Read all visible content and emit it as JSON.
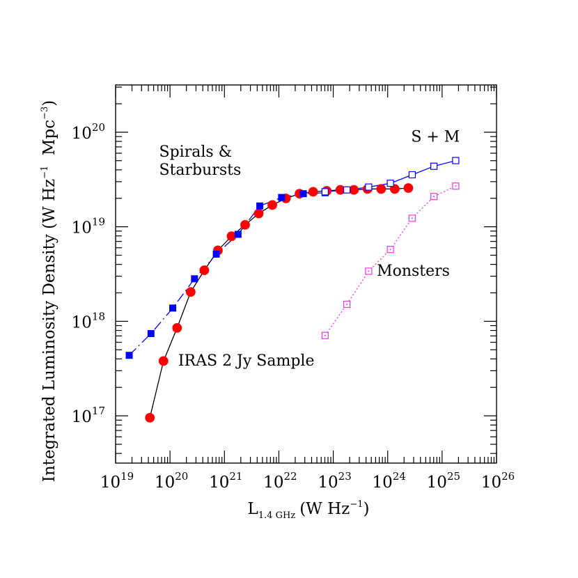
{
  "chart_data": {
    "type": "line",
    "xlabel": "L",
    "xlabel_sub": "1.4 GHz",
    "xlabel_unit_pre": "(W Hz",
    "xlabel_unit_exp": "−1",
    "xlabel_unit_post": ")",
    "ylabel_main": "Integrated Luminosity Density (W Hz",
    "ylabel_exp1": "−1",
    "ylabel_mid": "  Mpc",
    "ylabel_exp2": "−3",
    "ylabel_end": ")",
    "x_log_range": [
      19,
      26
    ],
    "y_log_range": [
      16.5,
      20.5
    ],
    "x_tick_labels": [
      {
        "base": "10",
        "exp": "19",
        "value": 19
      },
      {
        "base": "10",
        "exp": "20",
        "value": 20
      },
      {
        "base": "10",
        "exp": "21",
        "value": 21
      },
      {
        "base": "10",
        "exp": "22",
        "value": 22
      },
      {
        "base": "10",
        "exp": "23",
        "value": 23
      },
      {
        "base": "10",
        "exp": "24",
        "value": 24
      },
      {
        "base": "10",
        "exp": "25",
        "value": 25
      },
      {
        "base": "10",
        "exp": "26",
        "value": 26
      }
    ],
    "y_tick_labels": [
      {
        "base": "10",
        "exp": "17",
        "value": 17
      },
      {
        "base": "10",
        "exp": "18",
        "value": 18
      },
      {
        "base": "10",
        "exp": "19",
        "value": 19
      },
      {
        "base": "10",
        "exp": "20",
        "value": 20
      }
    ],
    "annotations": [
      {
        "text": "Spirals &",
        "x": 19.8,
        "y": 19.74
      },
      {
        "text": "Starbursts",
        "x": 19.8,
        "y": 19.55
      },
      {
        "text": "S + M",
        "x": 24.43,
        "y": 19.9
      },
      {
        "text": "Monsters",
        "x": 23.8,
        "y": 18.48
      },
      {
        "text": "IRAS 2 Jy Sample",
        "x": 20.15,
        "y": 17.53
      }
    ],
    "series": [
      {
        "id": "iras",
        "color": "#ff0000",
        "marker": "filled-circle",
        "line": "solid",
        "line_color": "#000000",
        "points": [
          [
            19.63,
            16.98
          ],
          [
            19.88,
            17.58
          ],
          [
            20.13,
            17.93
          ],
          [
            20.38,
            18.31
          ],
          [
            20.63,
            18.54
          ],
          [
            20.88,
            18.75
          ],
          [
            21.13,
            18.9
          ],
          [
            21.38,
            19.02
          ],
          [
            21.63,
            19.14
          ],
          [
            21.88,
            19.23
          ],
          [
            22.13,
            19.3
          ],
          [
            22.38,
            19.35
          ],
          [
            22.63,
            19.37
          ],
          [
            22.88,
            19.38
          ],
          [
            23.13,
            19.39
          ],
          [
            23.38,
            19.39
          ],
          [
            23.63,
            19.4
          ],
          [
            23.88,
            19.4
          ],
          [
            24.13,
            19.4
          ],
          [
            24.38,
            19.41
          ]
        ]
      },
      {
        "id": "spirals-starbursts",
        "color": "#0000ff",
        "marker": "filled-square",
        "line": "dash-dot",
        "line_color": "#0000ff",
        "points": [
          [
            19.25,
            17.64
          ],
          [
            19.65,
            17.87
          ],
          [
            20.05,
            18.14
          ],
          [
            20.45,
            18.45
          ],
          [
            20.85,
            18.71
          ],
          [
            21.25,
            18.92
          ],
          [
            21.65,
            19.22
          ],
          [
            22.05,
            19.31
          ],
          [
            22.45,
            19.35
          ],
          [
            22.85,
            19.36
          ]
        ]
      },
      {
        "id": "s-plus-m",
        "color": "#0000ff",
        "marker": "open-square",
        "line": "solid",
        "line_color": "#0000ff",
        "points": [
          [
            22.85,
            19.37
          ],
          [
            23.25,
            19.39
          ],
          [
            23.65,
            19.42
          ],
          [
            24.05,
            19.46
          ],
          [
            24.45,
            19.55
          ],
          [
            24.85,
            19.64
          ],
          [
            25.25,
            19.7
          ]
        ]
      },
      {
        "id": "monsters",
        "color": "#ee33ee",
        "marker": "open-square-dot",
        "line": "dotted",
        "line_color": "#ee33ee",
        "points": [
          [
            22.85,
            17.85
          ],
          [
            23.25,
            18.18
          ],
          [
            23.65,
            18.53
          ],
          [
            24.05,
            18.76
          ],
          [
            24.45,
            19.09
          ],
          [
            24.85,
            19.32
          ],
          [
            25.25,
            19.43
          ]
        ]
      }
    ]
  }
}
